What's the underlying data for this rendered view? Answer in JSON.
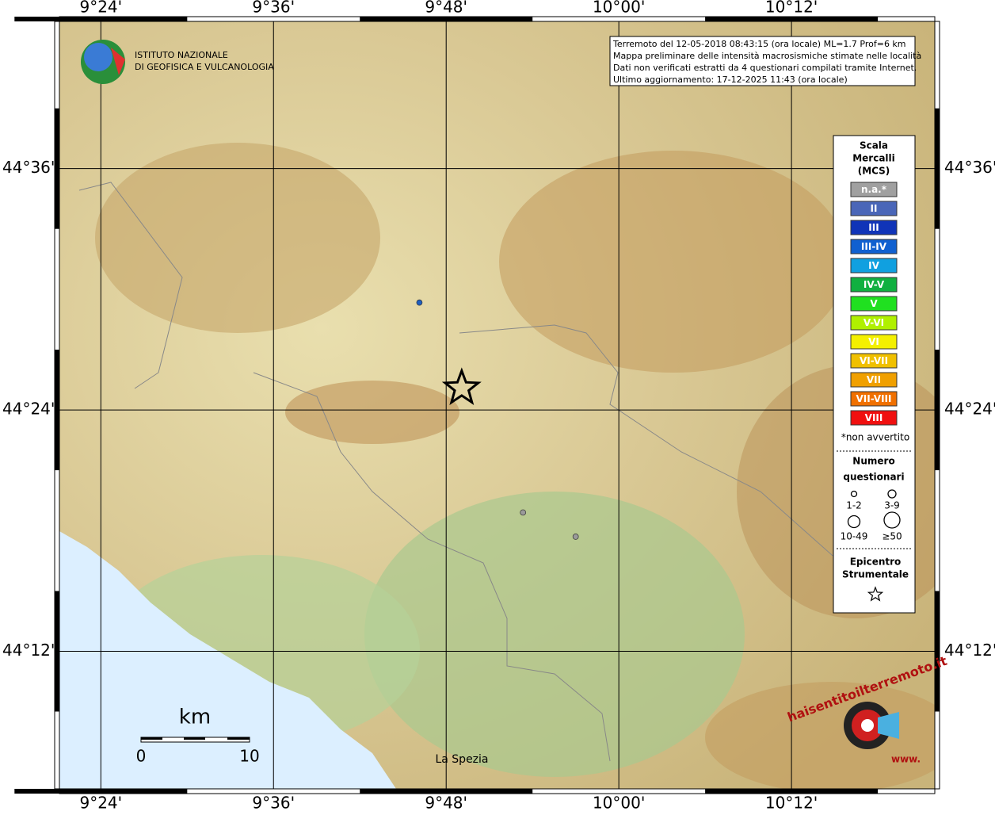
{
  "map": {
    "xlim": [
      9.352,
      10.366
    ],
    "ylim": [
      44.086,
      44.722
    ],
    "xticks": [
      {
        "value": 9.4,
        "label": "9°24'"
      },
      {
        "value": 9.6,
        "label": "9°36'"
      },
      {
        "value": 9.8,
        "label": "9°48'"
      },
      {
        "value": 10.0,
        "label": "10°00'"
      },
      {
        "value": 10.2,
        "label": "10°12'"
      }
    ],
    "yticks": [
      {
        "value": 44.6,
        "label": "44°36'"
      },
      {
        "value": 44.4,
        "label": "44°24'"
      },
      {
        "value": 44.2,
        "label": "44°12'"
      }
    ],
    "points": [
      {
        "lon": 9.769,
        "lat": 44.489,
        "color": "#1f5fbf"
      },
      {
        "lon": 9.889,
        "lat": 44.315,
        "color": "#9a9a9a"
      },
      {
        "lon": 9.95,
        "lat": 44.295,
        "color": "#9a9a9a"
      }
    ],
    "epicenter": {
      "lon": 9.818,
      "lat": 44.418
    },
    "place": "La Spezia"
  },
  "logo": {
    "line1": "ISTITUTO NAZIONALE",
    "line2": "DI GEOFISICA E VULCANOLOGIA"
  },
  "info": [
    "Terremoto del 12-05-2018 08:43:15 (ora locale) ML=1.7 Prof=6 km",
    "Mappa preliminare delle intensità macrosismiche stimate nelle località",
    "Dati non verificati estratti da 4 questionari compilati tramite Internet.",
    "Ultimo aggiornamento: 17-12-2025 11:43 (ora locale)"
  ],
  "legend": {
    "title": [
      "Scala",
      "Mercalli",
      "(MCS)"
    ],
    "classes": [
      {
        "label": "n.a.*",
        "color": "#a0a0a0"
      },
      {
        "label": "II",
        "color": "#4a66b8"
      },
      {
        "label": "III",
        "color": "#1034b8"
      },
      {
        "label": "III-IV",
        "color": "#1060d0"
      },
      {
        "label": "IV",
        "color": "#10a0e0"
      },
      {
        "label": "IV-V",
        "color": "#10b040"
      },
      {
        "label": "V",
        "color": "#20e020"
      },
      {
        "label": "V-VI",
        "color": "#b0f000"
      },
      {
        "label": "VI",
        "color": "#f4f000"
      },
      {
        "label": "VI-VII",
        "color": "#f0c000"
      },
      {
        "label": "VII",
        "color": "#f0a000"
      },
      {
        "label": "VII-VIII",
        "color": "#f07000"
      },
      {
        "label": "VIII",
        "color": "#f01010"
      }
    ],
    "note": "*non avvertito",
    "count_title": [
      "Numero",
      "questionari"
    ],
    "sizes": [
      "1-2",
      "3-9",
      "10-49",
      "≥50"
    ],
    "epi_title": [
      "Epicentro",
      "Strumentale"
    ]
  },
  "scalebar": {
    "unit": "km",
    "start": "0",
    "end": "10"
  },
  "brand": {
    "main": "haisentitoilterremoto.it",
    "prefix": "www."
  }
}
